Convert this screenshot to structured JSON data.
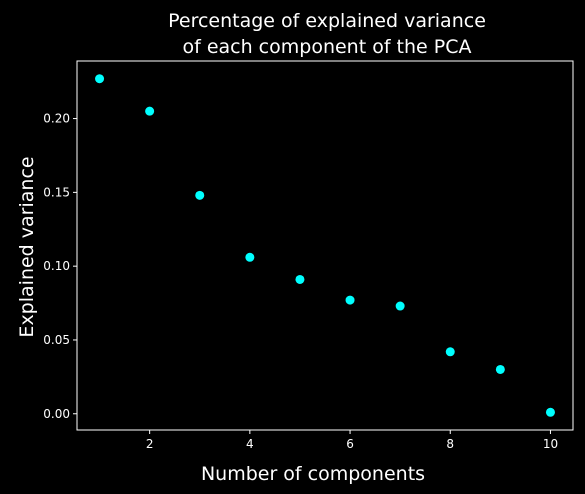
{
  "chart_data": {
    "type": "scatter",
    "title": [
      "Percentage of explained variance",
      "of each component of the PCA"
    ],
    "xlabel": "Number of components",
    "ylabel": "Explained variance",
    "x": [
      1,
      2,
      3,
      4,
      5,
      6,
      7,
      8,
      9,
      10
    ],
    "y": [
      0.227,
      0.205,
      0.148,
      0.106,
      0.091,
      0.077,
      0.073,
      0.042,
      0.03,
      0.001
    ],
    "xlim": [
      0.55,
      10.45
    ],
    "ylim": [
      -0.011,
      0.239
    ],
    "xticks": [
      2,
      4,
      6,
      8,
      10
    ],
    "xtick_labels": [
      "2",
      "4",
      "6",
      "8",
      "10"
    ],
    "yticks": [
      0.0,
      0.05,
      0.1,
      0.15,
      0.2
    ],
    "ytick_labels": [
      "0.00",
      "0.05",
      "0.10",
      "0.15",
      "0.20"
    ],
    "grid": false,
    "legend": false,
    "colors": {
      "background": "#000000",
      "axes": "#ffffff",
      "marker": "#00ffff",
      "text": "#ffffff"
    }
  }
}
